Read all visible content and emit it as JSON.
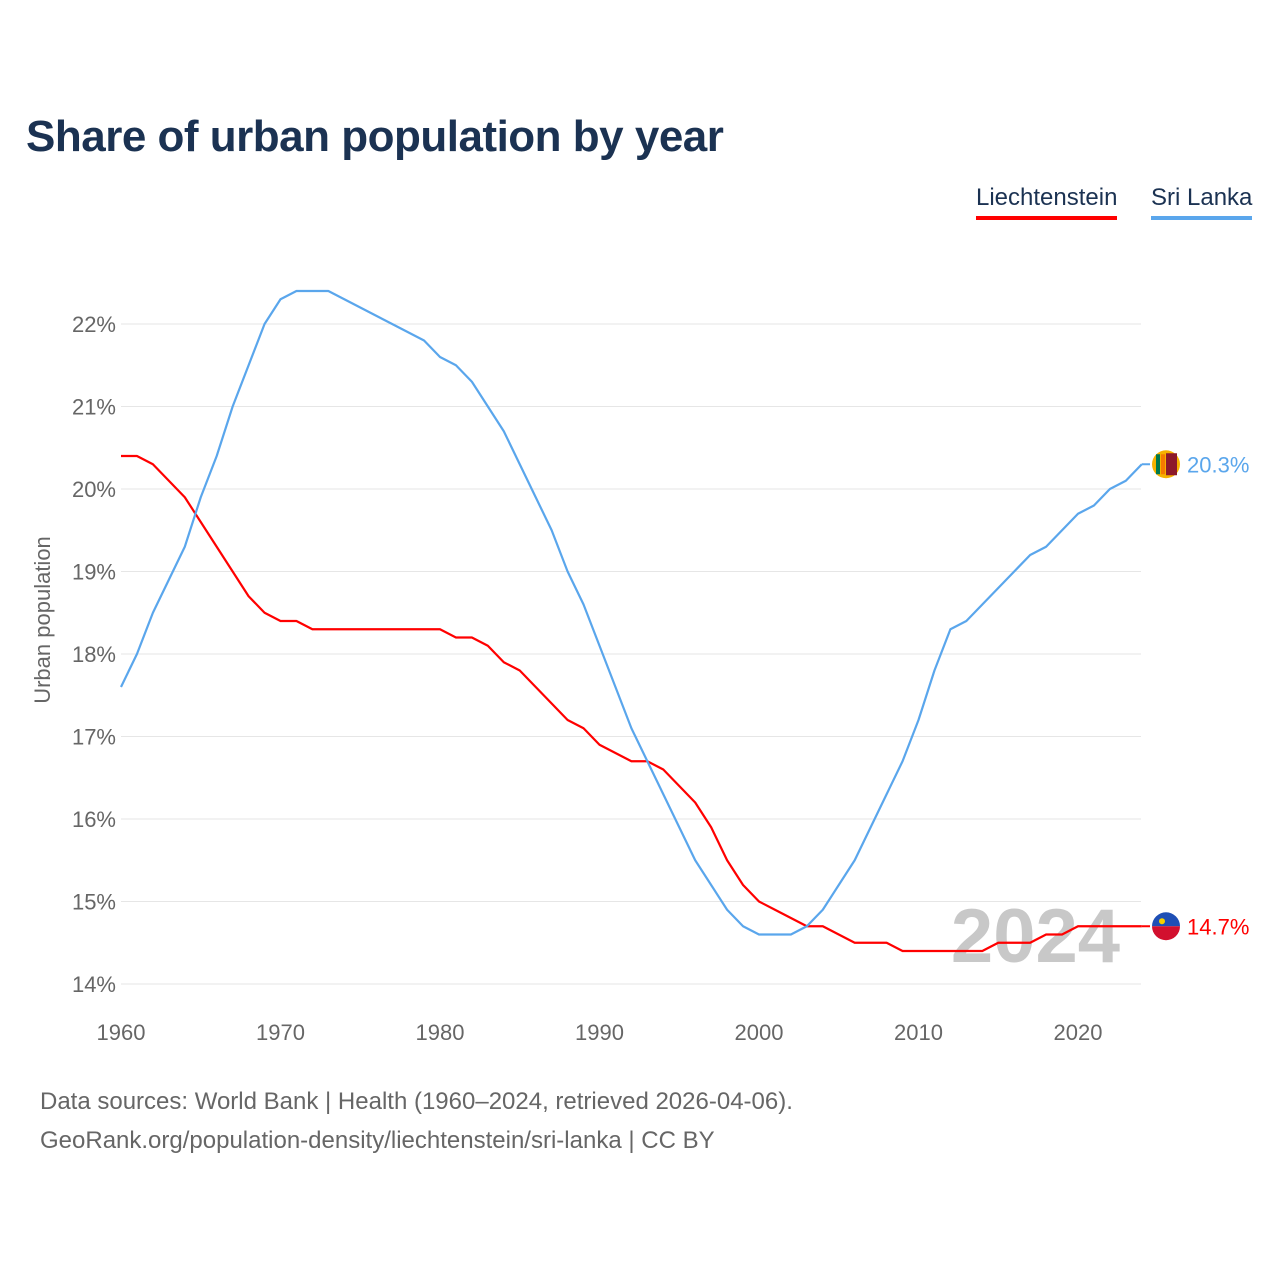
{
  "chart_data": {
    "type": "line",
    "title": "Share of urban population by year",
    "xlabel": "",
    "ylabel": "Urban population",
    "xlim": [
      1960,
      2024
    ],
    "ylim": [
      14,
      22.5
    ],
    "x_ticks": [
      1960,
      1970,
      1980,
      1990,
      2000,
      2010,
      2020
    ],
    "y_ticks": [
      14,
      15,
      16,
      17,
      18,
      19,
      20,
      21,
      22
    ],
    "y_tick_labels": [
      "14%",
      "15%",
      "16%",
      "17%",
      "18%",
      "19%",
      "20%",
      "21%",
      "22%"
    ],
    "grid": true,
    "legend_position": "top-right",
    "year_watermark": "2024",
    "x": [
      1960,
      1961,
      1962,
      1963,
      1964,
      1965,
      1966,
      1967,
      1968,
      1969,
      1970,
      1971,
      1972,
      1973,
      1974,
      1975,
      1976,
      1977,
      1978,
      1979,
      1980,
      1981,
      1982,
      1983,
      1984,
      1985,
      1986,
      1987,
      1988,
      1989,
      1990,
      1991,
      1992,
      1993,
      1994,
      1995,
      1996,
      1997,
      1998,
      1999,
      2000,
      2001,
      2002,
      2003,
      2004,
      2005,
      2006,
      2007,
      2008,
      2009,
      2010,
      2011,
      2012,
      2013,
      2014,
      2015,
      2016,
      2017,
      2018,
      2019,
      2020,
      2021,
      2022,
      2023,
      2024
    ],
    "series": [
      {
        "name": "Liechtenstein",
        "color": "#ff0000",
        "end_label": "14.7%",
        "values": [
          20.4,
          20.4,
          20.3,
          20.1,
          19.9,
          19.6,
          19.3,
          19.0,
          18.7,
          18.5,
          18.4,
          18.4,
          18.3,
          18.3,
          18.3,
          18.3,
          18.3,
          18.3,
          18.3,
          18.3,
          18.3,
          18.2,
          18.2,
          18.1,
          17.9,
          17.8,
          17.6,
          17.4,
          17.2,
          17.1,
          16.9,
          16.8,
          16.7,
          16.7,
          16.6,
          16.4,
          16.2,
          15.9,
          15.5,
          15.2,
          15.0,
          14.9,
          14.8,
          14.7,
          14.7,
          14.6,
          14.5,
          14.5,
          14.5,
          14.4,
          14.4,
          14.4,
          14.4,
          14.4,
          14.4,
          14.5,
          14.5,
          14.5,
          14.6,
          14.6,
          14.7,
          14.7,
          14.7,
          14.7,
          14.7
        ]
      },
      {
        "name": "Sri Lanka",
        "color": "#5aa6ec",
        "end_label": "20.3%",
        "values": [
          17.6,
          18.0,
          18.5,
          18.9,
          19.3,
          19.9,
          20.4,
          21.0,
          21.5,
          22.0,
          22.3,
          22.4,
          22.4,
          22.4,
          22.3,
          22.2,
          22.1,
          22.0,
          21.9,
          21.8,
          21.6,
          21.5,
          21.3,
          21.0,
          20.7,
          20.3,
          19.9,
          19.5,
          19.0,
          18.6,
          18.1,
          17.6,
          17.1,
          16.7,
          16.3,
          15.9,
          15.5,
          15.2,
          14.9,
          14.7,
          14.6,
          14.6,
          14.6,
          14.7,
          14.9,
          15.2,
          15.5,
          15.9,
          16.3,
          16.7,
          17.2,
          17.8,
          18.3,
          18.4,
          18.6,
          18.8,
          19.0,
          19.2,
          19.3,
          19.5,
          19.7,
          19.8,
          20.0,
          20.1,
          20.3
        ]
      }
    ]
  },
  "footer": {
    "line1": "Data sources: World Bank | Health (1960–2024, retrieved 2026-04-06).",
    "line2": "GeoRank.org/population-density/liechtenstein/sri-lanka | CC BY"
  }
}
